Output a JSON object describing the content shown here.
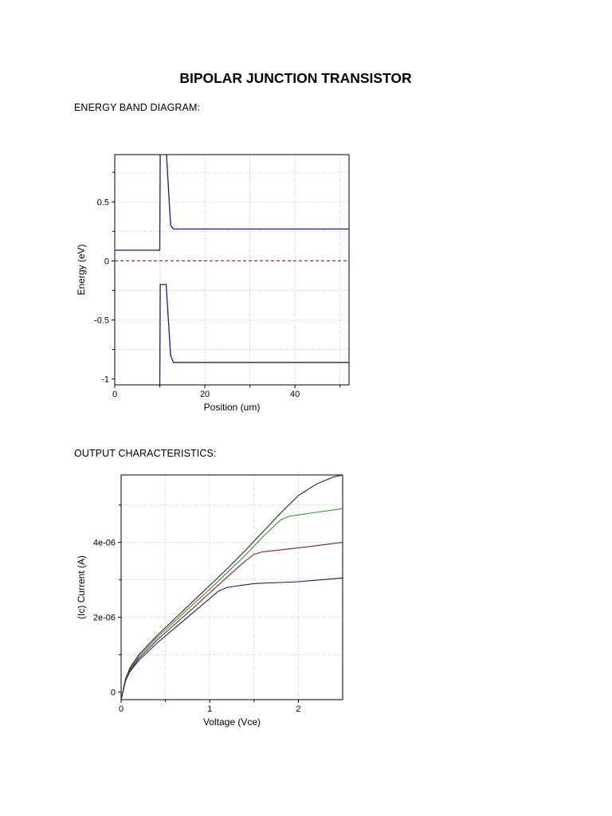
{
  "document": {
    "title": "BIPOLAR JUNCTION TRANSISTOR",
    "section1": "ENERGY BAND DIAGRAM:",
    "section2": "OUTPUT CHARACTERISTICS:"
  },
  "colors": {
    "band": "#1a1a8a",
    "fermi": "#cc2222",
    "grid": "#d0d0d0",
    "series": [
      "#1a1a7a",
      "#8b1a1a",
      "#2a9a2a",
      "#2a2a2a"
    ]
  },
  "chart_data": [
    {
      "type": "line",
      "title": "",
      "xlabel": "Position (um)",
      "ylabel": "Energy (eV)",
      "xlim": [
        0,
        52
      ],
      "ylim": [
        -1.05,
        0.9
      ],
      "xticks": [
        0,
        20,
        40
      ],
      "yticks": [
        0.5,
        0,
        -0.5,
        -1
      ],
      "xtick_labels": [
        "0",
        "20",
        "40"
      ],
      "ytick_labels": [
        "0.5",
        "0",
        "-0.5",
        "-1"
      ],
      "grid": true,
      "series": [
        {
          "style": "conduction-band",
          "x": [
            0,
            10,
            10.1,
            11.4,
            12.4,
            13,
            52
          ],
          "y": [
            0.09,
            0.09,
            0.95,
            0.95,
            0.3,
            0.27,
            0.27
          ]
        },
        {
          "style": "valence-band",
          "x": [
            10,
            10.1,
            11.4,
            12.4,
            13,
            52
          ],
          "y": [
            -1.1,
            -0.2,
            -0.2,
            -0.8,
            -0.86,
            -0.86
          ]
        },
        {
          "style": "fermi-level",
          "x": [
            0,
            52
          ],
          "y": [
            0,
            0
          ]
        }
      ]
    },
    {
      "type": "line",
      "title": "",
      "xlabel": "Voltage (Vce)",
      "ylabel": "(Ic) Current (A)",
      "xlim": [
        0,
        2.5
      ],
      "ylim": [
        -2e-07,
        5.8e-06
      ],
      "xticks": [
        0,
        1,
        2
      ],
      "yticks": [
        0,
        2e-06,
        4e-06
      ],
      "xtick_labels": [
        "0",
        "1",
        "2"
      ],
      "ytick_labels": [
        "0",
        "2e-06",
        "4e-06"
      ],
      "grid": true,
      "series": [
        {
          "x": [
            0,
            0.05,
            0.1,
            0.2,
            0.4,
            0.6,
            0.8,
            1.0,
            1.1,
            1.2,
            1.5,
            2.0,
            2.5
          ],
          "y": [
            -2e-07,
            3e-07,
            5.5e-07,
            8.5e-07,
            1.3e-06,
            1.7e-06,
            2.1e-06,
            2.5e-06,
            2.7e-06,
            2.8e-06,
            2.9e-06,
            2.95e-06,
            3.05e-06
          ]
        },
        {
          "x": [
            0,
            0.05,
            0.1,
            0.2,
            0.4,
            0.6,
            0.8,
            1.0,
            1.2,
            1.4,
            1.5,
            1.6,
            2.0,
            2.5
          ],
          "y": [
            -2e-07,
            3.2e-07,
            5.8e-07,
            9e-07,
            1.38e-06,
            1.8e-06,
            2.22e-06,
            2.65e-06,
            3.08e-06,
            3.5e-06,
            3.68e-06,
            3.75e-06,
            3.85e-06,
            4e-06
          ]
        },
        {
          "x": [
            0,
            0.05,
            0.1,
            0.2,
            0.4,
            0.6,
            0.8,
            1.0,
            1.2,
            1.4,
            1.6,
            1.8,
            1.9,
            2.2,
            2.5
          ],
          "y": [
            -2e-07,
            3.4e-07,
            6.2e-07,
            9.5e-07,
            1.45e-06,
            1.88e-06,
            2.32e-06,
            2.75e-06,
            3.2e-06,
            3.65e-06,
            4.15e-06,
            4.6e-06,
            4.7e-06,
            4.8e-06,
            4.9e-06
          ]
        },
        {
          "x": [
            0,
            0.05,
            0.1,
            0.2,
            0.4,
            0.6,
            0.8,
            1.0,
            1.2,
            1.4,
            1.6,
            1.8,
            2.0,
            2.2,
            2.4,
            2.5
          ],
          "y": [
            -2e-07,
            3.6e-07,
            6.5e-07,
            1e-06,
            1.5e-06,
            1.95e-06,
            2.4e-06,
            2.85e-06,
            3.3e-06,
            3.78e-06,
            4.28e-06,
            4.78e-06,
            5.25e-06,
            5.55e-06,
            5.75e-06,
            5.8e-06
          ]
        }
      ]
    }
  ]
}
